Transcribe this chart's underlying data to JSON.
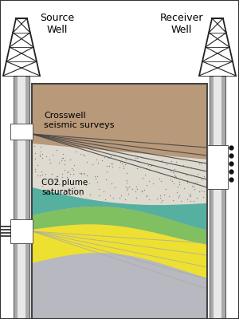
{
  "fig_width": 3.0,
  "fig_height": 4.0,
  "dpi": 100,
  "bg_color": "#ffffff",
  "border_color": "#444444",
  "title_source": "Source\nWell",
  "title_receiver": "Receiver\nWell",
  "label_crosswell": "Crosswell\nseismic surveys",
  "label_co2": "CO2 plume\nsaturation",
  "brown_color": "#b8997a",
  "dotted_color": "#dedad0",
  "teal_color": "#55b0a0",
  "green_color": "#80c060",
  "yellow_color": "#eee030",
  "gray_color": "#b8b8c0",
  "ray_color_dark": "#444444",
  "ray_color_light": "#aaaaaa",
  "well_color_outer": "#aaaaaa",
  "well_color_mid": "#cccccc",
  "well_color_inner": "#e8e8e8"
}
